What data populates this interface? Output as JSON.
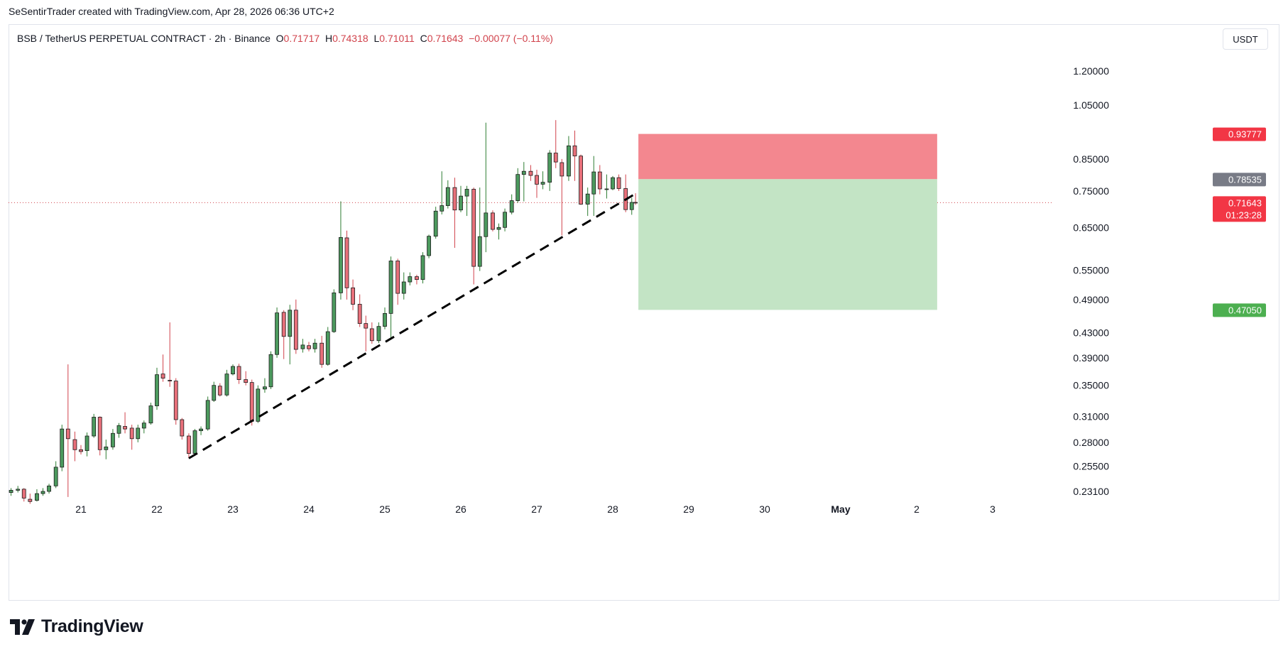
{
  "header": {
    "credit": "SeSentirTrader created with TradingView.com, Apr 28, 2026 06:36 UTC+2"
  },
  "symbol": {
    "title": "BSB / TetherUS PERPETUAL CONTRACT · 2h · Binance",
    "open_label": "O",
    "open": "0.71717",
    "high_label": "H",
    "high": "0.74318",
    "low_label": "L",
    "low": "0.71011",
    "close_label": "C",
    "close": "0.71643",
    "change": "−0.00077 (−0.11%)"
  },
  "currency_button": "USDT",
  "logo": {
    "text": "TradingView"
  },
  "colors": {
    "up": "#26a69a",
    "down": "#ef5350",
    "bull_body": "#4c9a5e",
    "bear_body": "#e8707a",
    "stop_zone": "#f3878f",
    "target_zone": "#c3e4c5"
  },
  "chart_data": {
    "type": "candlestick",
    "symbol": "BSB/USDT",
    "interval": "2h",
    "x_axis": {
      "day_ticks": [
        {
          "label": "21",
          "day": 21
        },
        {
          "label": "22",
          "day": 22
        },
        {
          "label": "23",
          "day": 23
        },
        {
          "label": "24",
          "day": 24
        },
        {
          "label": "25",
          "day": 25
        },
        {
          "label": "26",
          "day": 26
        },
        {
          "label": "27",
          "day": 27
        },
        {
          "label": "28",
          "day": 28
        },
        {
          "label": "29",
          "day": 29
        },
        {
          "label": "30",
          "day": 30
        },
        {
          "label": "May",
          "day": 31,
          "bold": true
        },
        {
          "label": "2",
          "day": 32
        },
        {
          "label": "3",
          "day": 33
        }
      ],
      "range_days": [
        20.0,
        33.6
      ]
    },
    "y_axis": {
      "scale": "log",
      "range": [
        0.215,
        1.48
      ],
      "ticks": [
        "1.20000",
        "1.05000",
        "0.85000",
        "0.75000",
        "0.65000",
        "0.55000",
        "0.49000",
        "0.43000",
        "0.39000",
        "0.35000",
        "0.31000",
        "0.28000",
        "0.25500",
        "0.23100"
      ]
    },
    "candles": [
      {
        "t": 20.08,
        "o": 0.23,
        "h": 0.234,
        "l": 0.227,
        "c": 0.232
      },
      {
        "t": 20.17,
        "o": 0.232,
        "h": 0.236,
        "l": 0.23,
        "c": 0.233
      },
      {
        "t": 20.25,
        "o": 0.233,
        "h": 0.234,
        "l": 0.222,
        "c": 0.225
      },
      {
        "t": 20.33,
        "o": 0.224,
        "h": 0.229,
        "l": 0.22,
        "c": 0.222
      },
      {
        "t": 20.42,
        "o": 0.223,
        "h": 0.233,
        "l": 0.222,
        "c": 0.229
      },
      {
        "t": 20.5,
        "o": 0.229,
        "h": 0.234,
        "l": 0.227,
        "c": 0.231
      },
      {
        "t": 20.58,
        "o": 0.231,
        "h": 0.238,
        "l": 0.229,
        "c": 0.236
      },
      {
        "t": 20.67,
        "o": 0.236,
        "h": 0.26,
        "l": 0.234,
        "c": 0.254
      },
      {
        "t": 20.75,
        "o": 0.254,
        "h": 0.3,
        "l": 0.25,
        "c": 0.295
      },
      {
        "t": 20.83,
        "o": 0.295,
        "h": 0.38,
        "l": 0.226,
        "c": 0.284
      },
      {
        "t": 20.92,
        "o": 0.283,
        "h": 0.292,
        "l": 0.26,
        "c": 0.272
      },
      {
        "t": 21.0,
        "o": 0.272,
        "h": 0.277,
        "l": 0.267,
        "c": 0.27
      },
      {
        "t": 21.08,
        "o": 0.271,
        "h": 0.291,
        "l": 0.265,
        "c": 0.287
      },
      {
        "t": 21.17,
        "o": 0.287,
        "h": 0.313,
        "l": 0.285,
        "c": 0.309
      },
      {
        "t": 21.25,
        "o": 0.309,
        "h": 0.31,
        "l": 0.266,
        "c": 0.272
      },
      {
        "t": 21.33,
        "o": 0.272,
        "h": 0.283,
        "l": 0.262,
        "c": 0.275
      },
      {
        "t": 21.42,
        "o": 0.275,
        "h": 0.295,
        "l": 0.272,
        "c": 0.29
      },
      {
        "t": 21.5,
        "o": 0.29,
        "h": 0.302,
        "l": 0.285,
        "c": 0.299
      },
      {
        "t": 21.58,
        "o": 0.298,
        "h": 0.315,
        "l": 0.29,
        "c": 0.295
      },
      {
        "t": 21.67,
        "o": 0.296,
        "h": 0.3,
        "l": 0.272,
        "c": 0.284
      },
      {
        "t": 21.75,
        "o": 0.284,
        "h": 0.3,
        "l": 0.28,
        "c": 0.296
      },
      {
        "t": 21.83,
        "o": 0.296,
        "h": 0.305,
        "l": 0.29,
        "c": 0.302
      },
      {
        "t": 21.92,
        "o": 0.302,
        "h": 0.327,
        "l": 0.3,
        "c": 0.323
      },
      {
        "t": 22.0,
        "o": 0.323,
        "h": 0.375,
        "l": 0.318,
        "c": 0.365
      },
      {
        "t": 22.08,
        "o": 0.366,
        "h": 0.395,
        "l": 0.355,
        "c": 0.36
      },
      {
        "t": 22.17,
        "o": 0.357,
        "h": 0.448,
        "l": 0.348,
        "c": 0.356
      },
      {
        "t": 22.25,
        "o": 0.356,
        "h": 0.36,
        "l": 0.3,
        "c": 0.306
      },
      {
        "t": 22.33,
        "o": 0.306,
        "h": 0.308,
        "l": 0.283,
        "c": 0.287
      },
      {
        "t": 22.42,
        "o": 0.287,
        "h": 0.29,
        "l": 0.263,
        "c": 0.268
      },
      {
        "t": 22.5,
        "o": 0.268,
        "h": 0.295,
        "l": 0.266,
        "c": 0.293
      },
      {
        "t": 22.58,
        "o": 0.293,
        "h": 0.298,
        "l": 0.288,
        "c": 0.295
      },
      {
        "t": 22.67,
        "o": 0.295,
        "h": 0.335,
        "l": 0.293,
        "c": 0.33
      },
      {
        "t": 22.75,
        "o": 0.33,
        "h": 0.355,
        "l": 0.328,
        "c": 0.35
      },
      {
        "t": 22.83,
        "o": 0.349,
        "h": 0.353,
        "l": 0.335,
        "c": 0.337
      },
      {
        "t": 22.92,
        "o": 0.337,
        "h": 0.372,
        "l": 0.335,
        "c": 0.366
      },
      {
        "t": 23.0,
        "o": 0.366,
        "h": 0.38,
        "l": 0.364,
        "c": 0.377
      },
      {
        "t": 23.08,
        "o": 0.377,
        "h": 0.381,
        "l": 0.352,
        "c": 0.358
      },
      {
        "t": 23.17,
        "o": 0.358,
        "h": 0.37,
        "l": 0.35,
        "c": 0.354
      },
      {
        "t": 23.25,
        "o": 0.354,
        "h": 0.358,
        "l": 0.299,
        "c": 0.304
      },
      {
        "t": 23.33,
        "o": 0.304,
        "h": 0.35,
        "l": 0.302,
        "c": 0.345
      },
      {
        "t": 23.42,
        "o": 0.345,
        "h": 0.36,
        "l": 0.34,
        "c": 0.348
      },
      {
        "t": 23.5,
        "o": 0.348,
        "h": 0.4,
        "l": 0.345,
        "c": 0.395
      },
      {
        "t": 23.58,
        "o": 0.395,
        "h": 0.475,
        "l": 0.39,
        "c": 0.465
      },
      {
        "t": 23.67,
        "o": 0.466,
        "h": 0.47,
        "l": 0.388,
        "c": 0.424
      },
      {
        "t": 23.75,
        "o": 0.424,
        "h": 0.48,
        "l": 0.38,
        "c": 0.47
      },
      {
        "t": 23.83,
        "o": 0.47,
        "h": 0.49,
        "l": 0.396,
        "c": 0.403
      },
      {
        "t": 23.92,
        "o": 0.404,
        "h": 0.42,
        "l": 0.398,
        "c": 0.41
      },
      {
        "t": 24.0,
        "o": 0.409,
        "h": 0.415,
        "l": 0.4,
        "c": 0.404
      },
      {
        "t": 24.08,
        "o": 0.404,
        "h": 0.42,
        "l": 0.398,
        "c": 0.413
      },
      {
        "t": 24.17,
        "o": 0.413,
        "h": 0.425,
        "l": 0.375,
        "c": 0.38
      },
      {
        "t": 24.25,
        "o": 0.38,
        "h": 0.44,
        "l": 0.378,
        "c": 0.432
      },
      {
        "t": 24.33,
        "o": 0.432,
        "h": 0.51,
        "l": 0.43,
        "c": 0.503
      },
      {
        "t": 24.42,
        "o": 0.503,
        "h": 0.72,
        "l": 0.49,
        "c": 0.625
      },
      {
        "t": 24.5,
        "o": 0.624,
        "h": 0.642,
        "l": 0.49,
        "c": 0.513
      },
      {
        "t": 24.58,
        "o": 0.513,
        "h": 0.53,
        "l": 0.47,
        "c": 0.481
      },
      {
        "t": 24.67,
        "o": 0.481,
        "h": 0.5,
        "l": 0.44,
        "c": 0.446
      },
      {
        "t": 24.75,
        "o": 0.446,
        "h": 0.46,
        "l": 0.4,
        "c": 0.438
      },
      {
        "t": 24.83,
        "o": 0.437,
        "h": 0.448,
        "l": 0.412,
        "c": 0.417
      },
      {
        "t": 24.92,
        "o": 0.417,
        "h": 0.448,
        "l": 0.413,
        "c": 0.441
      },
      {
        "t": 25.0,
        "o": 0.441,
        "h": 0.475,
        "l": 0.436,
        "c": 0.464
      },
      {
        "t": 25.08,
        "o": 0.464,
        "h": 0.58,
        "l": 0.42,
        "c": 0.57
      },
      {
        "t": 25.17,
        "o": 0.57,
        "h": 0.575,
        "l": 0.48,
        "c": 0.502
      },
      {
        "t": 25.25,
        "o": 0.502,
        "h": 0.545,
        "l": 0.49,
        "c": 0.525
      },
      {
        "t": 25.33,
        "o": 0.525,
        "h": 0.545,
        "l": 0.518,
        "c": 0.536
      },
      {
        "t": 25.42,
        "o": 0.536,
        "h": 0.54,
        "l": 0.52,
        "c": 0.53
      },
      {
        "t": 25.5,
        "o": 0.53,
        "h": 0.59,
        "l": 0.522,
        "c": 0.582
      },
      {
        "t": 25.58,
        "o": 0.582,
        "h": 0.632,
        "l": 0.576,
        "c": 0.628
      },
      {
        "t": 25.67,
        "o": 0.628,
        "h": 0.705,
        "l": 0.622,
        "c": 0.693
      },
      {
        "t": 25.75,
        "o": 0.693,
        "h": 0.81,
        "l": 0.684,
        "c": 0.708
      },
      {
        "t": 25.83,
        "o": 0.708,
        "h": 0.782,
        "l": 0.7,
        "c": 0.76
      },
      {
        "t": 25.92,
        "o": 0.76,
        "h": 0.79,
        "l": 0.6,
        "c": 0.696
      },
      {
        "t": 26.0,
        "o": 0.696,
        "h": 0.765,
        "l": 0.69,
        "c": 0.735
      },
      {
        "t": 26.08,
        "o": 0.735,
        "h": 0.765,
        "l": 0.68,
        "c": 0.755
      },
      {
        "t": 26.17,
        "o": 0.755,
        "h": 0.76,
        "l": 0.52,
        "c": 0.558
      },
      {
        "t": 26.25,
        "o": 0.558,
        "h": 0.76,
        "l": 0.548,
        "c": 0.627
      },
      {
        "t": 26.33,
        "o": 0.627,
        "h": 0.98,
        "l": 0.59,
        "c": 0.688
      },
      {
        "t": 26.42,
        "o": 0.688,
        "h": 0.695,
        "l": 0.64,
        "c": 0.645
      },
      {
        "t": 26.5,
        "o": 0.645,
        "h": 0.66,
        "l": 0.62,
        "c": 0.65
      },
      {
        "t": 26.58,
        "o": 0.65,
        "h": 0.7,
        "l": 0.64,
        "c": 0.69
      },
      {
        "t": 26.67,
        "o": 0.69,
        "h": 0.74,
        "l": 0.684,
        "c": 0.722
      },
      {
        "t": 26.75,
        "o": 0.722,
        "h": 0.82,
        "l": 0.716,
        "c": 0.8
      },
      {
        "t": 26.83,
        "o": 0.8,
        "h": 0.84,
        "l": 0.72,
        "c": 0.81
      },
      {
        "t": 26.92,
        "o": 0.81,
        "h": 0.83,
        "l": 0.78,
        "c": 0.797
      },
      {
        "t": 27.0,
        "o": 0.797,
        "h": 0.815,
        "l": 0.73,
        "c": 0.77
      },
      {
        "t": 27.08,
        "o": 0.77,
        "h": 0.81,
        "l": 0.755,
        "c": 0.776
      },
      {
        "t": 27.17,
        "o": 0.776,
        "h": 0.88,
        "l": 0.75,
        "c": 0.87
      },
      {
        "t": 27.25,
        "o": 0.87,
        "h": 0.99,
        "l": 0.82,
        "c": 0.84
      },
      {
        "t": 27.33,
        "o": 0.838,
        "h": 0.85,
        "l": 0.63,
        "c": 0.795
      },
      {
        "t": 27.42,
        "o": 0.795,
        "h": 0.93,
        "l": 0.78,
        "c": 0.895
      },
      {
        "t": 27.5,
        "o": 0.895,
        "h": 0.95,
        "l": 0.78,
        "c": 0.86
      },
      {
        "t": 27.58,
        "o": 0.86,
        "h": 0.865,
        "l": 0.71,
        "c": 0.712
      },
      {
        "t": 27.67,
        "o": 0.712,
        "h": 0.76,
        "l": 0.68,
        "c": 0.741
      },
      {
        "t": 27.75,
        "o": 0.741,
        "h": 0.86,
        "l": 0.68,
        "c": 0.808
      },
      {
        "t": 27.83,
        "o": 0.808,
        "h": 0.83,
        "l": 0.74,
        "c": 0.756
      },
      {
        "t": 27.92,
        "o": 0.756,
        "h": 0.8,
        "l": 0.728,
        "c": 0.756
      },
      {
        "t": 28.0,
        "o": 0.756,
        "h": 0.795,
        "l": 0.752,
        "c": 0.79
      },
      {
        "t": 28.08,
        "o": 0.79,
        "h": 0.8,
        "l": 0.75,
        "c": 0.757
      },
      {
        "t": 28.17,
        "o": 0.757,
        "h": 0.8,
        "l": 0.69,
        "c": 0.697
      },
      {
        "t": 28.25,
        "o": 0.697,
        "h": 0.73,
        "l": 0.683,
        "c": 0.717
      },
      {
        "t": 28.3,
        "o": 0.71717,
        "h": 0.74318,
        "l": 0.71011,
        "c": 0.71643
      }
    ],
    "trendline": {
      "style": "dashed",
      "color": "#000000",
      "start": {
        "t": 22.42,
        "price": 0.263
      },
      "end": {
        "t": 28.3,
        "price": 0.742
      }
    },
    "position_tool": {
      "side": "short",
      "t_start": 28.3,
      "t_end": 32.27,
      "stop_loss": 0.93777,
      "entry": 0.78535,
      "target": 0.4705
    },
    "last_price": {
      "value": "0.71643",
      "countdown": "01:23:28",
      "numeric": 0.71643
    },
    "price_badges": [
      {
        "label": "0.93777",
        "value": 0.93777,
        "color": "#f23645"
      },
      {
        "label": "0.78535",
        "value": 0.78535,
        "color": "#787b86"
      },
      {
        "label": "0.47050",
        "value": 0.4705,
        "color": "#4caf50"
      }
    ]
  }
}
